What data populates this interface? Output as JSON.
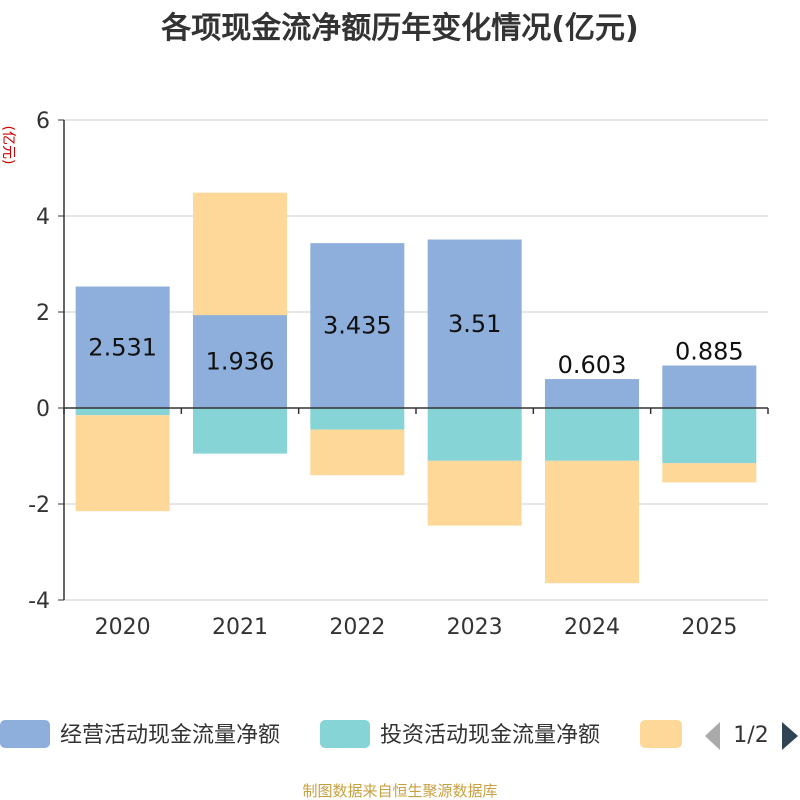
{
  "chart_data": {
    "type": "bar",
    "stacked": true,
    "title": "各项现金流净额历年变化情况(亿元)",
    "ylabel": "(亿元)",
    "xlabel": "",
    "categories": [
      "2020",
      "2021",
      "2022",
      "2023",
      "2024",
      "2025"
    ],
    "ylim": [
      -4,
      6
    ],
    "yticks": [
      -4,
      -2,
      0,
      2,
      4,
      6
    ],
    "grid": true,
    "series": [
      {
        "name": "经营活动现金流量净额",
        "color": "#8eaedb",
        "values": [
          2.531,
          1.936,
          3.435,
          3.51,
          0.603,
          0.885
        ],
        "labels": [
          "2.531",
          "1.936",
          "3.435",
          "3.51",
          "0.603",
          "0.885"
        ]
      },
      {
        "name": "投资活动现金流量净额",
        "color": "#86d4d6",
        "values": [
          -0.15,
          -0.95,
          -0.45,
          -1.1,
          -1.1,
          -1.15
        ]
      },
      {
        "name": "",
        "color": "#fdd899",
        "values": [
          -2.0,
          2.55,
          -0.95,
          -1.35,
          -2.55,
          -0.4
        ]
      }
    ],
    "legend": {
      "position": "bottom",
      "page": "1/2"
    },
    "source": "制图数据来自恒生聚源数据库"
  }
}
